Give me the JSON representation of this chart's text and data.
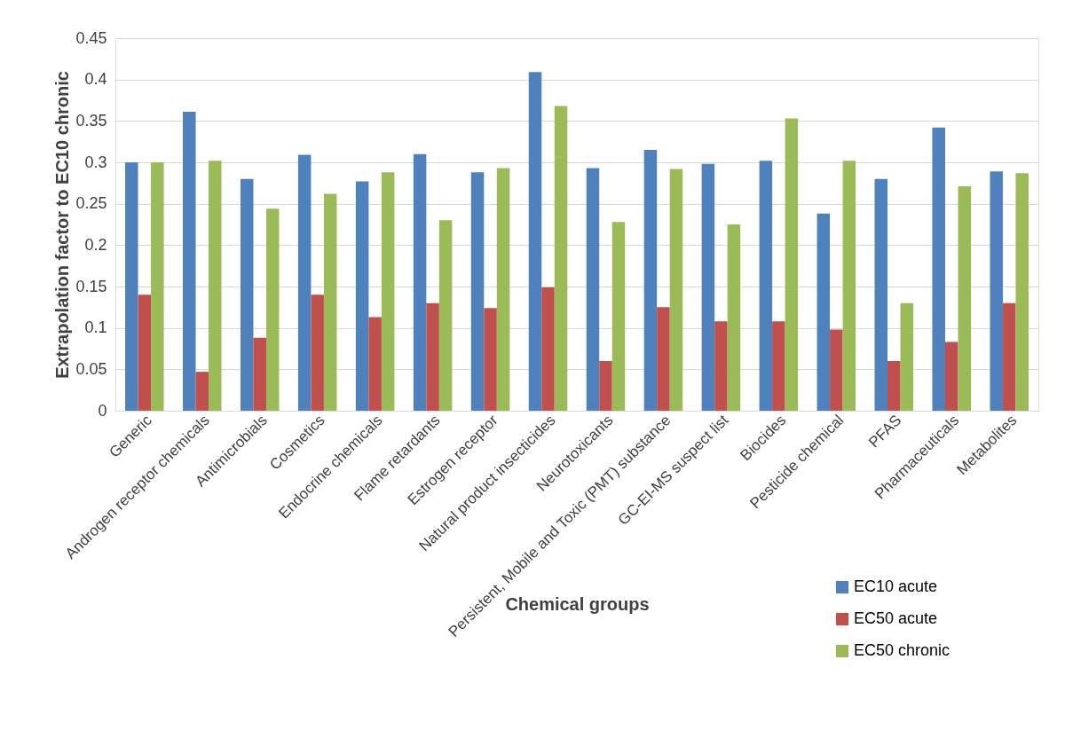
{
  "chart_data": {
    "type": "bar",
    "xlabel": "Chemical groups",
    "ylabel": "Extrapolation factor to EC10 chronic",
    "categories": [
      "Generic",
      "Androgen receptor chemicals",
      "Antimicrobials",
      "Cosmetics",
      "Endocrine chemicals",
      "Flame retardants",
      "Estrogen receptor",
      "Natural product insecticides",
      "Neurotoxicants",
      "Persistent, Mobile and Toxic (PMT) substance",
      "GC-EI-MS suspect list",
      "Biocides",
      "Pesticide chemical",
      "PFAS",
      "Pharmaceuticals",
      "Metabolites"
    ],
    "series": [
      {
        "name": "EC10 acute",
        "color": "#4f81bd",
        "values": [
          0.3,
          0.361,
          0.28,
          0.309,
          0.277,
          0.31,
          0.288,
          0.409,
          0.293,
          0.315,
          0.298,
          0.302,
          0.238,
          0.28,
          0.342,
          0.289
        ]
      },
      {
        "name": "EC50 acute",
        "color": "#c0504d",
        "values": [
          0.14,
          0.047,
          0.088,
          0.14,
          0.113,
          0.13,
          0.124,
          0.149,
          0.06,
          0.125,
          0.108,
          0.108,
          0.098,
          0.06,
          0.083,
          0.13
        ]
      },
      {
        "name": "EC50 chronic",
        "color": "#9bbb59",
        "values": [
          0.3,
          0.302,
          0.244,
          0.262,
          0.288,
          0.23,
          0.293,
          0.368,
          0.228,
          0.292,
          0.225,
          0.353,
          0.302,
          0.13,
          0.271,
          0.287
        ]
      }
    ],
    "ylim": [
      0,
      0.45
    ],
    "yticks": [
      0,
      0.05,
      0.1,
      0.15,
      0.2,
      0.25,
      0.3,
      0.35,
      0.4,
      0.45
    ],
    "grid": "y",
    "legend": "bottom right"
  }
}
